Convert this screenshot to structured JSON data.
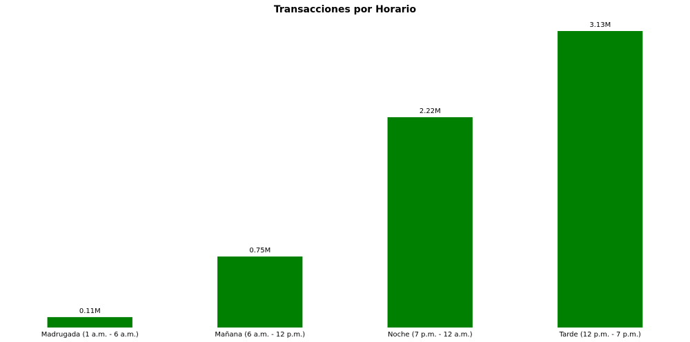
{
  "chart_data": {
    "type": "bar",
    "title": "Transacciones por Horario",
    "xlabel": "",
    "ylabel": "",
    "categories": [
      "Madrugada (1 a.m. - 6 a.m.)",
      "Mañana (6 a.m. - 12 p.m.)",
      "Noche (7 p.m. - 12 a.m.)",
      "Tarde (12 p.m. - 7 p.m.)"
    ],
    "values": [
      0.11,
      0.75,
      2.22,
      3.13
    ],
    "value_labels": [
      "0.11M",
      "0.75M",
      "2.22M",
      "3.13M"
    ],
    "ylim": [
      0,
      3.13
    ],
    "grid": false,
    "bar_color": "#008000"
  }
}
